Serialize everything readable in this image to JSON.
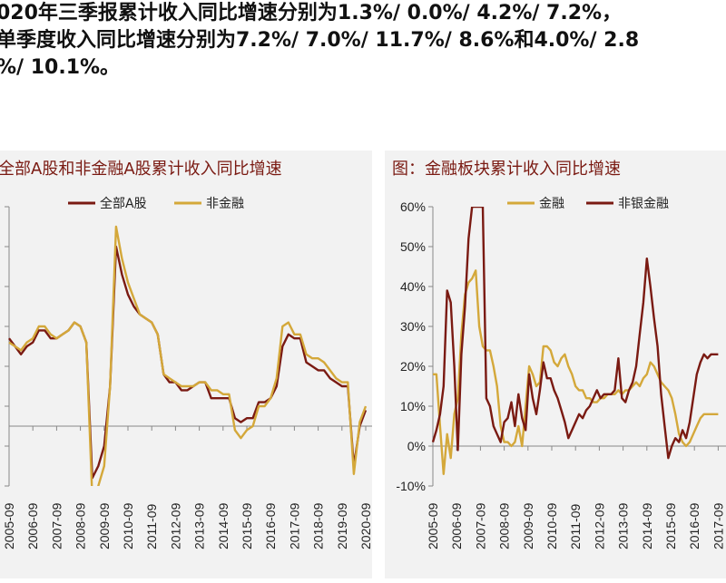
{
  "intro": {
    "line1": "020年三季报累计收入同比增速分别为1.3%/ 0.0%/ 4.2%/ 7.2%，",
    "line2": "单季度收入同比增速分别为7.2%/ 7.0%/ 11.7%/ 8.6%和4.0%/ 2.8",
    "line3": "%/ 10.1%。"
  },
  "colors": {
    "dark": "#7a1a12",
    "gold": "#d4a83a",
    "panel": "#f2f2f2",
    "title": "#7a1a12"
  },
  "chart_data": [
    {
      "type": "line",
      "title": "全部A股和非金融A股累计收入同比增速",
      "legend_placement": "top",
      "grid": false,
      "x_ticks": [
        "2005-09",
        "2006-09",
        "2007-09",
        "2008-09",
        "2009-09",
        "2010-09",
        "2011-09",
        "2012-09",
        "2013-09",
        "2014-09",
        "2015-09",
        "2016-09",
        "2017-09",
        "2018-09",
        "2019-09",
        "2020-09"
      ],
      "series": [
        {
          "name": "全部A股",
          "color": "#7a1a12",
          "x": [
            2005.75,
            2006.0,
            2006.25,
            2006.5,
            2006.75,
            2007.0,
            2007.25,
            2007.5,
            2007.75,
            2008.0,
            2008.25,
            2008.5,
            2008.75,
            2009.0,
            2009.25,
            2009.5,
            2009.75,
            2010.0,
            2010.25,
            2010.5,
            2010.75,
            2011.0,
            2011.25,
            2011.5,
            2011.75,
            2012.0,
            2012.25,
            2012.5,
            2012.75,
            2013.0,
            2013.25,
            2013.5,
            2013.75,
            2014.0,
            2014.25,
            2014.5,
            2014.75,
            2015.0,
            2015.25,
            2015.5,
            2015.75,
            2016.0,
            2016.25,
            2016.5,
            2016.75,
            2017.0,
            2017.25,
            2017.5,
            2017.75,
            2018.0,
            2018.25,
            2018.5,
            2018.75,
            2019.0,
            2019.25,
            2019.5,
            2019.75,
            2020.0,
            2020.25,
            2020.5,
            2020.75
          ],
          "y": [
            22,
            20,
            18,
            20,
            21,
            24,
            24,
            22,
            22,
            23,
            24,
            26,
            25,
            21,
            -13,
            -10,
            -5,
            10,
            45,
            38,
            33,
            30,
            28,
            27,
            26,
            23,
            13,
            11,
            11,
            9,
            9,
            10,
            11,
            11,
            7,
            7,
            7,
            7,
            2,
            1,
            2,
            2,
            6,
            6,
            7,
            10,
            20,
            23,
            22,
            22,
            16,
            15,
            14,
            14,
            12,
            11,
            10,
            10,
            -10,
            0,
            4
          ]
        },
        {
          "name": "非金融",
          "color": "#d4a83a",
          "x": [
            2005.75,
            2006.0,
            2006.25,
            2006.5,
            2006.75,
            2007.0,
            2007.25,
            2007.5,
            2007.75,
            2008.0,
            2008.25,
            2008.5,
            2008.75,
            2009.0,
            2009.25,
            2009.5,
            2009.75,
            2010.0,
            2010.25,
            2010.5,
            2010.75,
            2011.0,
            2011.25,
            2011.5,
            2011.75,
            2012.0,
            2012.25,
            2012.5,
            2012.75,
            2013.0,
            2013.25,
            2013.5,
            2013.75,
            2014.0,
            2014.25,
            2014.5,
            2014.75,
            2015.0,
            2015.25,
            2015.5,
            2015.75,
            2016.0,
            2016.25,
            2016.5,
            2016.75,
            2017.0,
            2017.25,
            2017.5,
            2017.75,
            2018.0,
            2018.25,
            2018.5,
            2018.75,
            2019.0,
            2019.25,
            2019.5,
            2019.75,
            2020.0,
            2020.25,
            2020.5,
            2020.75
          ],
          "y": [
            21,
            20,
            19,
            21,
            22,
            25,
            25,
            23,
            22,
            23,
            24,
            26,
            25,
            21,
            -18,
            -15,
            -10,
            10,
            50,
            42,
            36,
            32,
            28,
            27,
            26,
            23,
            13,
            12,
            11,
            10,
            10,
            10,
            11,
            11,
            9,
            9,
            8,
            8,
            -1,
            -3,
            -1,
            0,
            5,
            5,
            7,
            12,
            25,
            26,
            23,
            23,
            18,
            17,
            17,
            16,
            14,
            12,
            11,
            11,
            -12,
            1,
            5
          ]
        }
      ]
    },
    {
      "type": "line",
      "title": "图：金融板块累计收入同比增速",
      "legend_placement": "top",
      "grid": false,
      "y_ticks": [
        "60%",
        "50%",
        "40%",
        "30%",
        "20%",
        "10%",
        "0%",
        "-10%"
      ],
      "ylim": [
        -10,
        60
      ],
      "x_ticks": [
        "2005-09",
        "2006-09",
        "2007-09",
        "2008-09",
        "2009-09",
        "2010-09",
        "2011-09",
        "2012-09",
        "2013-09",
        "2014-09",
        "2015-09",
        "2016-09",
        "2017-09"
      ],
      "series": [
        {
          "name": "金融",
          "color": "#d4a83a",
          "x": [
            2005.75,
            2005.9,
            2006.05,
            2006.2,
            2006.35,
            2006.5,
            2006.65,
            2006.8,
            2006.95,
            2007.1,
            2007.25,
            2007.4,
            2007.55,
            2007.7,
            2007.85,
            2008.0,
            2008.15,
            2008.3,
            2008.45,
            2008.6,
            2008.75,
            2008.9,
            2009.05,
            2009.2,
            2009.35,
            2009.5,
            2009.65,
            2009.8,
            2009.95,
            2010.1,
            2010.25,
            2010.4,
            2010.55,
            2010.7,
            2010.85,
            2011.0,
            2011.15,
            2011.3,
            2011.45,
            2011.6,
            2011.75,
            2011.9,
            2012.05,
            2012.2,
            2012.35,
            2012.5,
            2012.65,
            2012.8,
            2012.95,
            2013.1,
            2013.25,
            2013.4,
            2013.55,
            2013.7,
            2013.85,
            2014.0,
            2014.15,
            2014.3,
            2014.45,
            2014.6,
            2014.75,
            2014.9,
            2015.05,
            2015.2,
            2015.35,
            2015.5,
            2015.65,
            2015.8,
            2015.95,
            2016.1,
            2016.25,
            2016.4,
            2016.55,
            2016.7,
            2016.85,
            2017.0,
            2017.15,
            2017.3,
            2017.45,
            2017.6,
            2017.75
          ],
          "y": [
            18,
            18,
            5,
            -7,
            3,
            -3,
            8,
            12,
            28,
            38,
            41,
            42,
            44,
            30,
            25,
            24,
            24,
            20,
            15,
            5,
            1,
            1,
            0,
            1,
            5,
            0,
            10,
            20,
            18,
            15,
            16,
            25,
            25,
            24,
            21,
            20,
            22,
            23,
            20,
            18,
            15,
            14,
            14,
            12,
            12,
            11,
            11,
            12,
            12,
            13,
            13,
            13,
            14,
            13,
            14,
            14,
            15,
            16,
            15,
            17,
            18,
            21,
            20,
            18,
            16,
            15,
            14,
            12,
            8,
            3,
            1,
            0,
            1,
            3,
            5,
            7,
            8,
            8,
            8,
            8,
            8
          ]
        },
        {
          "name": "非银金融",
          "color": "#7a1a12",
          "x": [
            2005.75,
            2005.9,
            2006.05,
            2006.2,
            2006.35,
            2006.5,
            2006.65,
            2006.8,
            2006.95,
            2007.1,
            2007.25,
            2007.4,
            2007.55,
            2007.7,
            2007.85,
            2008.0,
            2008.15,
            2008.3,
            2008.45,
            2008.6,
            2008.75,
            2008.9,
            2009.05,
            2009.2,
            2009.35,
            2009.5,
            2009.65,
            2009.8,
            2009.95,
            2010.1,
            2010.25,
            2010.4,
            2010.55,
            2010.7,
            2010.85,
            2011.0,
            2011.15,
            2011.3,
            2011.45,
            2011.6,
            2011.75,
            2011.9,
            2012.05,
            2012.2,
            2012.35,
            2012.5,
            2012.65,
            2012.8,
            2012.95,
            2013.1,
            2013.25,
            2013.4,
            2013.55,
            2013.7,
            2013.85,
            2014.0,
            2014.15,
            2014.3,
            2014.45,
            2014.6,
            2014.75,
            2014.9,
            2015.05,
            2015.2,
            2015.35,
            2015.5,
            2015.65,
            2015.8,
            2015.95,
            2016.1,
            2016.25,
            2016.4,
            2016.55,
            2016.7,
            2016.85,
            2017.0,
            2017.15,
            2017.3,
            2017.45,
            2017.6,
            2017.75
          ],
          "y": [
            1,
            4,
            8,
            15,
            39,
            36,
            20,
            -1,
            23,
            35,
            52,
            60,
            60,
            60,
            60,
            12,
            10,
            5,
            3,
            1,
            6,
            7,
            11,
            5,
            13,
            7,
            4,
            18,
            12,
            8,
            14,
            21,
            17,
            17,
            14,
            12,
            9,
            6,
            2,
            4,
            6,
            8,
            7,
            9,
            10,
            12,
            14,
            12,
            13,
            13,
            13,
            14,
            22,
            12,
            11,
            14,
            16,
            20,
            28,
            36,
            47,
            40,
            32,
            25,
            13,
            5,
            -3,
            0,
            2,
            1,
            4,
            2,
            6,
            12,
            18,
            21,
            23,
            22,
            23,
            23,
            23
          ]
        }
      ]
    }
  ]
}
